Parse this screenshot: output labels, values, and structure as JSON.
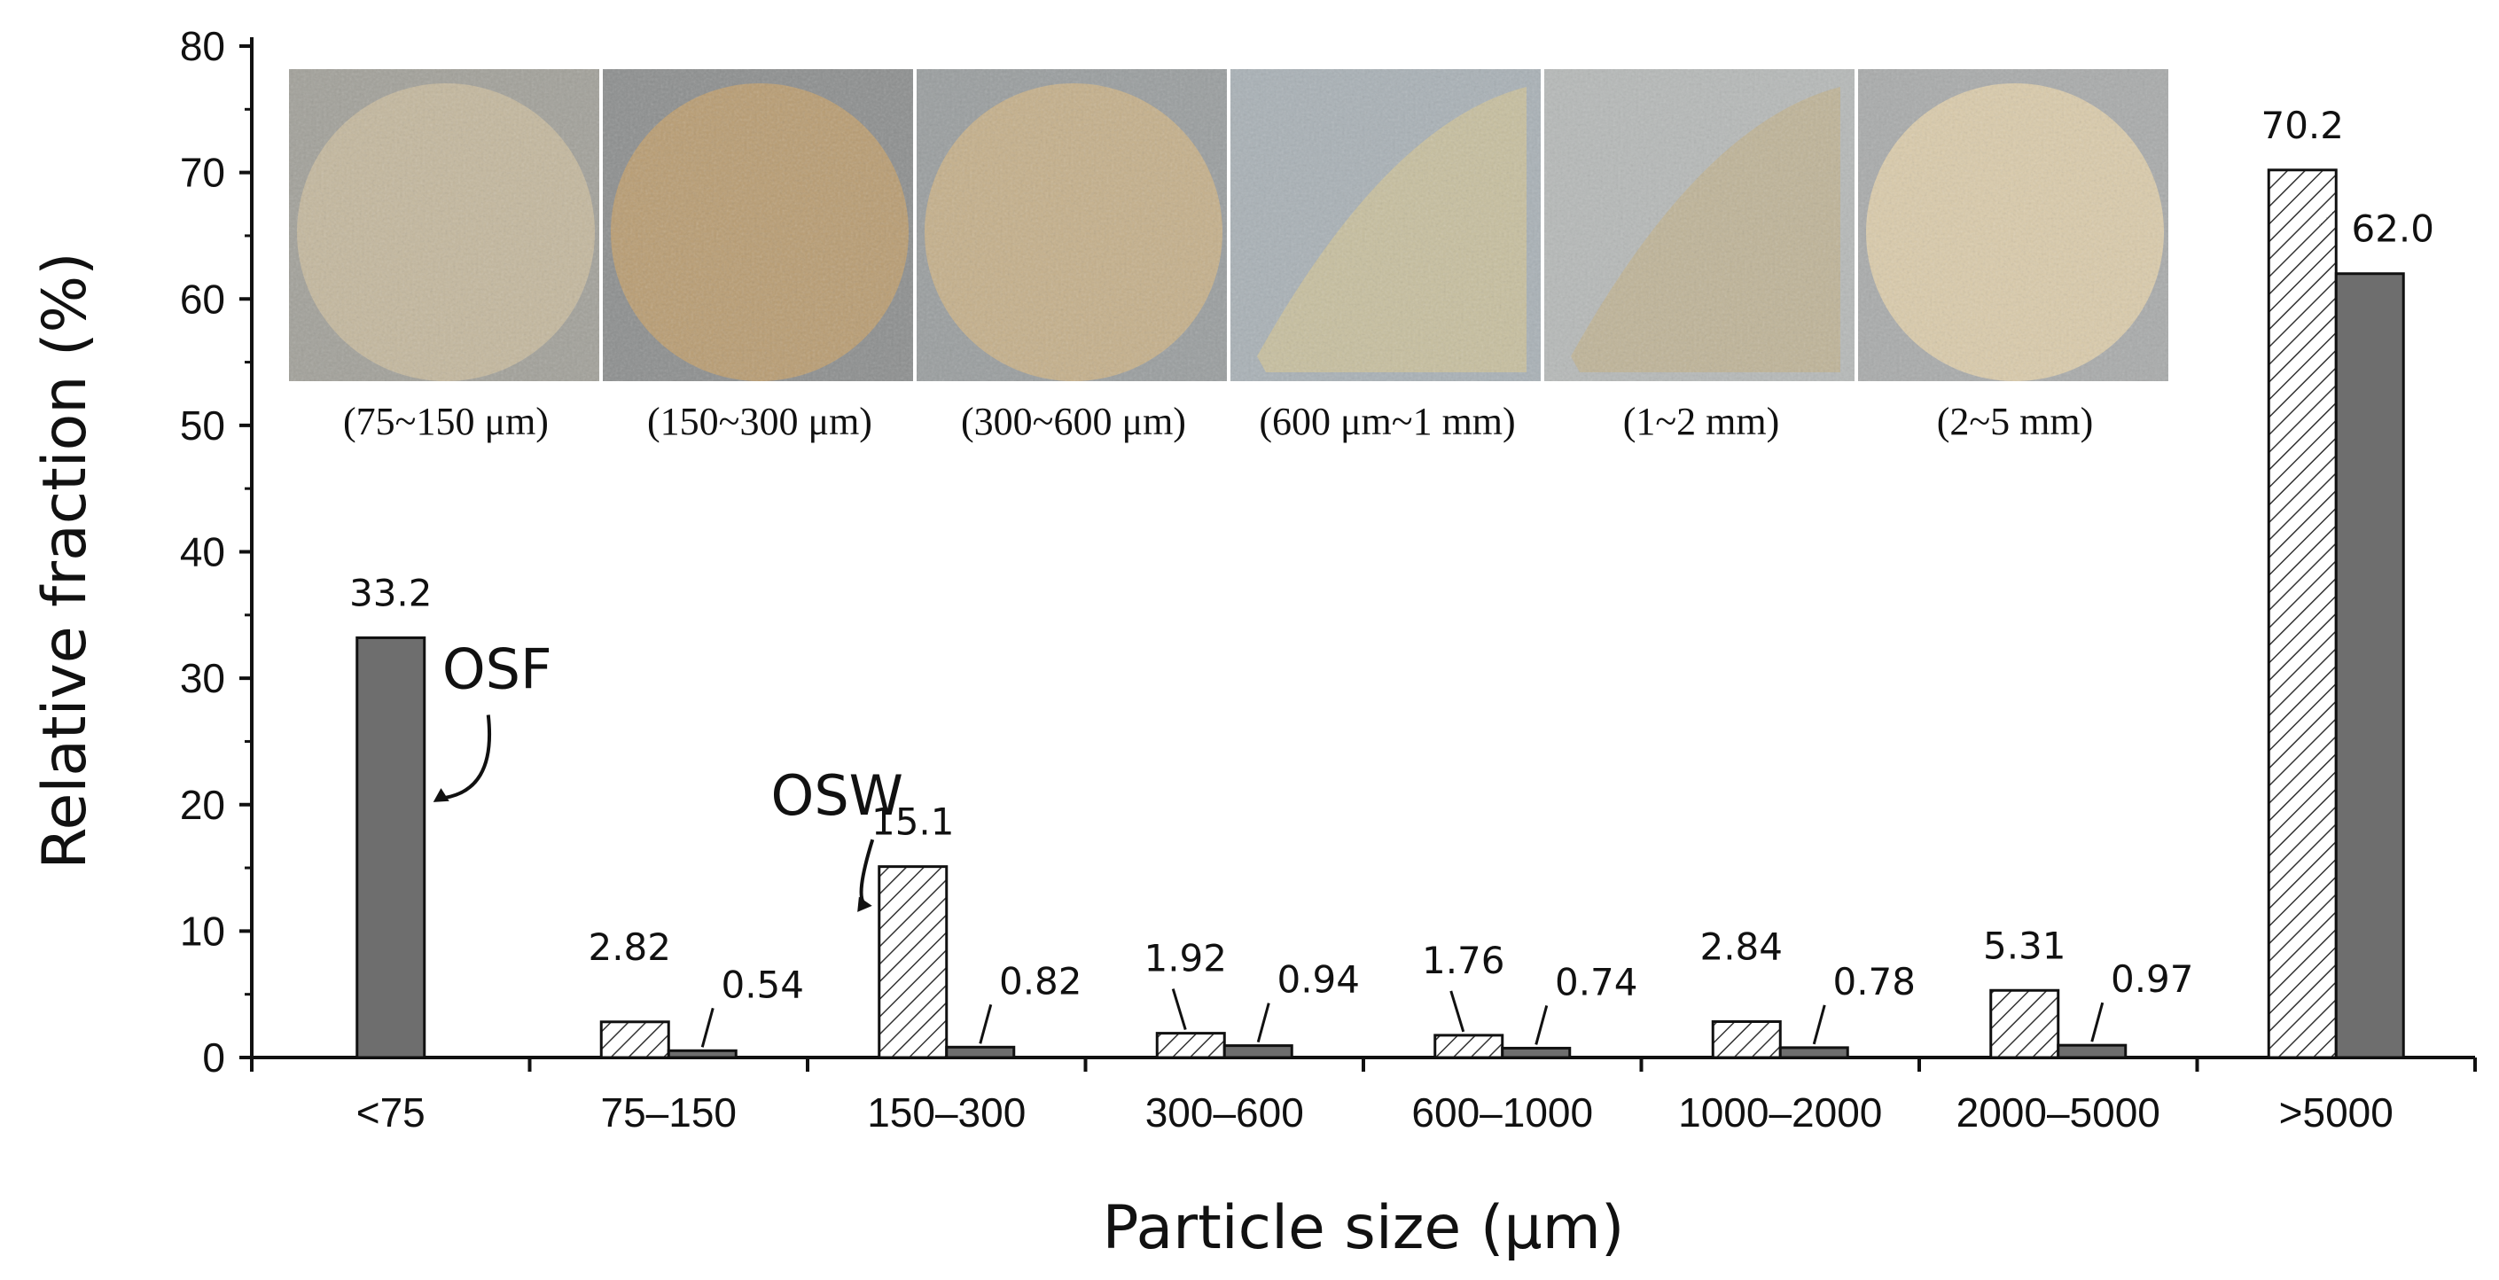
{
  "chart_data": {
    "type": "bar",
    "xlabel": "Particle size (μm)",
    "ylabel": "Relative fraction (%)",
    "ylim": [
      0,
      80
    ],
    "yticks": [
      0,
      10,
      20,
      30,
      40,
      50,
      60,
      70,
      80
    ],
    "grid": false,
    "categories": [
      "<75",
      "75–150",
      "150–300",
      "300–600",
      "600–1000",
      "1000–2000",
      "2000–5000",
      ">5000"
    ],
    "series": [
      {
        "name": "OSW",
        "pattern": "hatched",
        "color": "#ffffff",
        "values": [
          null,
          2.82,
          15.1,
          1.92,
          1.76,
          2.84,
          5.31,
          70.2
        ],
        "labels": [
          "",
          "2.82",
          "15.1",
          "1.92",
          "1.76",
          "2.84",
          "5.31",
          "70.2"
        ]
      },
      {
        "name": "OSF",
        "pattern": "solid",
        "color": "#6e6e6e",
        "values": [
          33.2,
          0.54,
          0.82,
          0.94,
          0.74,
          0.78,
          0.97,
          62.0
        ],
        "labels": [
          "33.2",
          "0.54",
          "0.82",
          "0.94",
          "0.74",
          "0.78",
          "0.97",
          "62.0"
        ]
      }
    ],
    "photos": [
      {
        "caption": "(75~150 μm)"
      },
      {
        "caption": "(150~300 μm)"
      },
      {
        "caption": "(300~600 μm)"
      },
      {
        "caption": "(600 μm~1 mm)"
      },
      {
        "caption": "(1~2 mm)"
      },
      {
        "caption": "(2~5 mm)"
      }
    ]
  }
}
